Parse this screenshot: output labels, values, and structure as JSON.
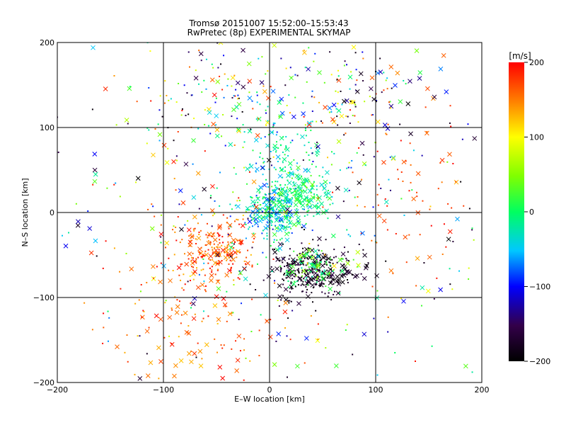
{
  "chart_data": {
    "type": "scatter",
    "title": "Tromsø 20151007 15:52:00–15:53:43",
    "subtitle": "RwPretec (8p) EXPERIMENTAL SKYMAP",
    "xlabel": "E–W location [km]",
    "ylabel": "N–S location [km]",
    "xlim": [
      -200,
      200
    ],
    "ylim": [
      -200,
      200
    ],
    "xticks": [
      "−200",
      "−100",
      "0",
      "100",
      "200"
    ],
    "yticks": [
      "200",
      "100",
      "0",
      "−100",
      "−200"
    ],
    "grid": true,
    "colorbar": {
      "label": "[m/s]",
      "range": [
        -200,
        200
      ],
      "ticks": [
        "200",
        "100",
        "0",
        "−100",
        "−200"
      ]
    },
    "clusters": [
      {
        "x": 5,
        "y": 0,
        "sx": 14,
        "sy": 16,
        "n": 260,
        "vmin": -90,
        "vmax": 30
      },
      {
        "x": 30,
        "y": 20,
        "sx": 14,
        "sy": 12,
        "n": 140,
        "vmin": -40,
        "vmax": 40
      },
      {
        "x": 40,
        "y": -70,
        "sx": 22,
        "sy": 16,
        "n": 320,
        "vmin": -200,
        "vmax": -160
      },
      {
        "x": 40,
        "y": -65,
        "sx": 18,
        "sy": 12,
        "n": 90,
        "vmin": -30,
        "vmax": 60
      },
      {
        "x": -55,
        "y": -45,
        "sx": 18,
        "sy": 18,
        "n": 220,
        "vmin": 130,
        "vmax": 200
      },
      {
        "x": 15,
        "y": 60,
        "sx": 22,
        "sy": 30,
        "n": 140,
        "vmin": -60,
        "vmax": 20
      },
      {
        "x": 75,
        "y": 140,
        "sx": 35,
        "sy": 30,
        "n": 110,
        "vmin": -200,
        "vmax": 200
      },
      {
        "x": -50,
        "y": 130,
        "sx": 45,
        "sy": 40,
        "n": 130,
        "vmin": -200,
        "vmax": 200
      },
      {
        "x": -70,
        "y": -130,
        "sx": 40,
        "sy": 45,
        "n": 130,
        "vmin": 120,
        "vmax": 200
      },
      {
        "x": 0,
        "y": 0,
        "sx": 110,
        "sy": 110,
        "n": 420,
        "vmin": -200,
        "vmax": 200
      },
      {
        "x": 150,
        "y": 30,
        "sx": 35,
        "sy": 60,
        "n": 70,
        "vmin": 150,
        "vmax": 200
      }
    ]
  }
}
